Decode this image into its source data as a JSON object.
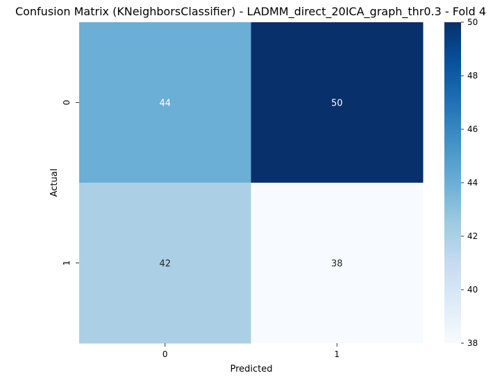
{
  "chart_data": {
    "type": "heatmap",
    "title": "Confusion Matrix (KNeighborsClassifier) - LADMM_direct_20ICA_graph_thr0.3 - Fold 4",
    "xlabel": "Predicted",
    "ylabel": "Actual",
    "x_categories": [
      "0",
      "1"
    ],
    "y_categories": [
      "0",
      "1"
    ],
    "values": [
      [
        44,
        50
      ],
      [
        42,
        38
      ]
    ],
    "colormap": "Blues",
    "colorbar": {
      "min": 38,
      "max": 50,
      "ticks": [
        38,
        40,
        42,
        44,
        46,
        48,
        50
      ]
    },
    "annotations": true,
    "grid": false,
    "legend": "colorbar-right"
  }
}
